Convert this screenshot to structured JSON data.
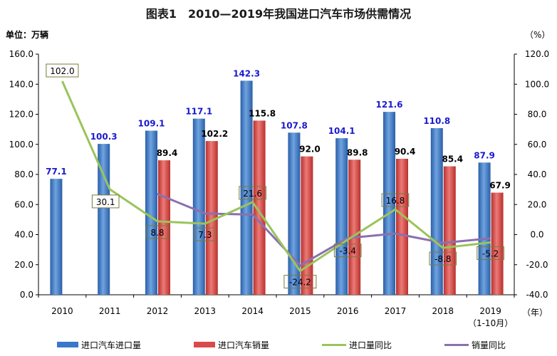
{
  "title": "图表1　2010—2019年我国进口汽车市场供需情况",
  "left_unit": "单位：万辆",
  "right_unit": "（%）",
  "x_unit": "（年）",
  "colors": {
    "import_bar": "#3a78c9",
    "sales_bar": "#d94a4a",
    "import_yoy_line": "#9ac45a",
    "sales_yoy_line": "#8a70b0",
    "import_label": "#1a1ad0",
    "axis": "#000000"
  },
  "legend": {
    "import_volume": "进口汽车进口量",
    "sales_volume": "进口汽车销量",
    "import_yoy": "进口量同比",
    "sales_yoy": "销量同比"
  },
  "chart_data": {
    "type": "bar",
    "categories": [
      "2010",
      "2011",
      "2012",
      "2013",
      "2014",
      "2015",
      "2016",
      "2017",
      "2018",
      "2019"
    ],
    "category_sublabels": [
      "",
      "",
      "",
      "",
      "",
      "",
      "",
      "",
      "",
      "（1-10月）"
    ],
    "left_axis": {
      "ylim": [
        0,
        160
      ],
      "ticks": [
        "0.0",
        "20.0",
        "40.0",
        "60.0",
        "80.0",
        "100.0",
        "120.0",
        "140.0",
        "160.0"
      ]
    },
    "right_axis": {
      "ylim": [
        -40,
        120
      ],
      "ticks": [
        "-40.0",
        "-20.0",
        "0.0",
        "20.0",
        "40.0",
        "60.0",
        "80.0",
        "100.0",
        "120.0"
      ]
    },
    "series": [
      {
        "name": "进口汽车进口量",
        "type": "bar",
        "axis": "left",
        "values": [
          77.1,
          100.3,
          109.1,
          117.1,
          142.3,
          107.8,
          104.1,
          121.6,
          110.8,
          87.9
        ],
        "labels": [
          "77.1",
          "100.3",
          "109.1",
          "117.1",
          "142.3",
          "107.8",
          "104.1",
          "121.6",
          "110.8",
          "87.9"
        ]
      },
      {
        "name": "进口汽车销量",
        "type": "bar",
        "axis": "left",
        "values": [
          null,
          null,
          89.4,
          102.2,
          115.8,
          92.0,
          89.8,
          90.4,
          85.4,
          67.9
        ],
        "labels": [
          "",
          "",
          "89.4",
          "102.2",
          "115.8",
          "92.0",
          "89.8",
          "90.4",
          "85.4",
          "67.9"
        ]
      },
      {
        "name": "进口量同比",
        "type": "line",
        "axis": "right",
        "values": [
          102.0,
          30.1,
          8.8,
          7.3,
          21.6,
          -24.2,
          -3.4,
          16.8,
          -8.8,
          -5.2
        ],
        "labels": [
          "102.0",
          "30.1",
          "8.8",
          "7.3",
          "21.6",
          "-24.2",
          "-3.4",
          "16.8",
          "-8.8",
          "-5.2"
        ]
      },
      {
        "name": "销量同比",
        "type": "line",
        "axis": "right",
        "values": [
          null,
          null,
          27.0,
          14.0,
          13.3,
          -20.5,
          -2.3,
          0.7,
          -5.5,
          -2.5
        ]
      }
    ]
  }
}
